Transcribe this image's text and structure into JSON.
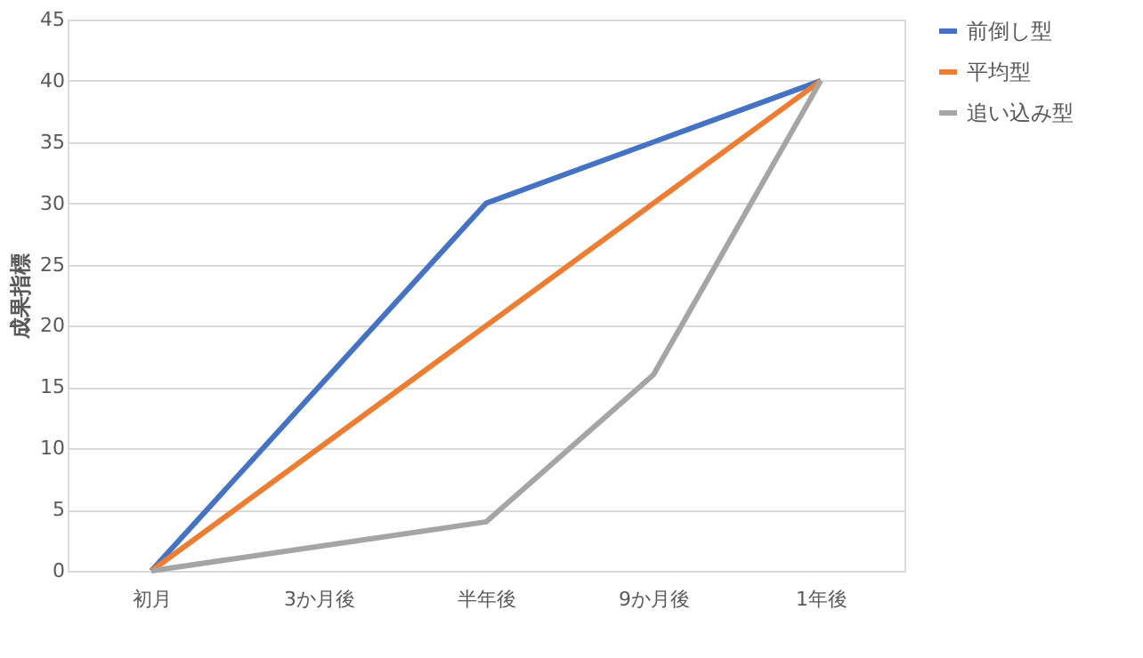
{
  "chart_data": {
    "type": "line",
    "ylabel": "成果指標",
    "categories": [
      "初月",
      "3か月後",
      "半年後",
      "9か月後",
      "1年後"
    ],
    "series": [
      {
        "name": "前倒し型",
        "color": "#4472c4",
        "values": [
          0,
          15,
          30,
          35,
          40
        ]
      },
      {
        "name": "平均型",
        "color": "#ed7d31",
        "values": [
          0,
          10,
          20,
          30,
          40
        ]
      },
      {
        "name": "追い込み型",
        "color": "#a5a5a5",
        "values": [
          0,
          2,
          4,
          16,
          40
        ]
      }
    ],
    "ylim": [
      0,
      45
    ],
    "yticks": [
      0,
      5,
      10,
      15,
      20,
      25,
      30,
      35,
      40,
      45
    ],
    "grid": "y",
    "legend": "right",
    "marker": "none",
    "line_style": "solid"
  }
}
